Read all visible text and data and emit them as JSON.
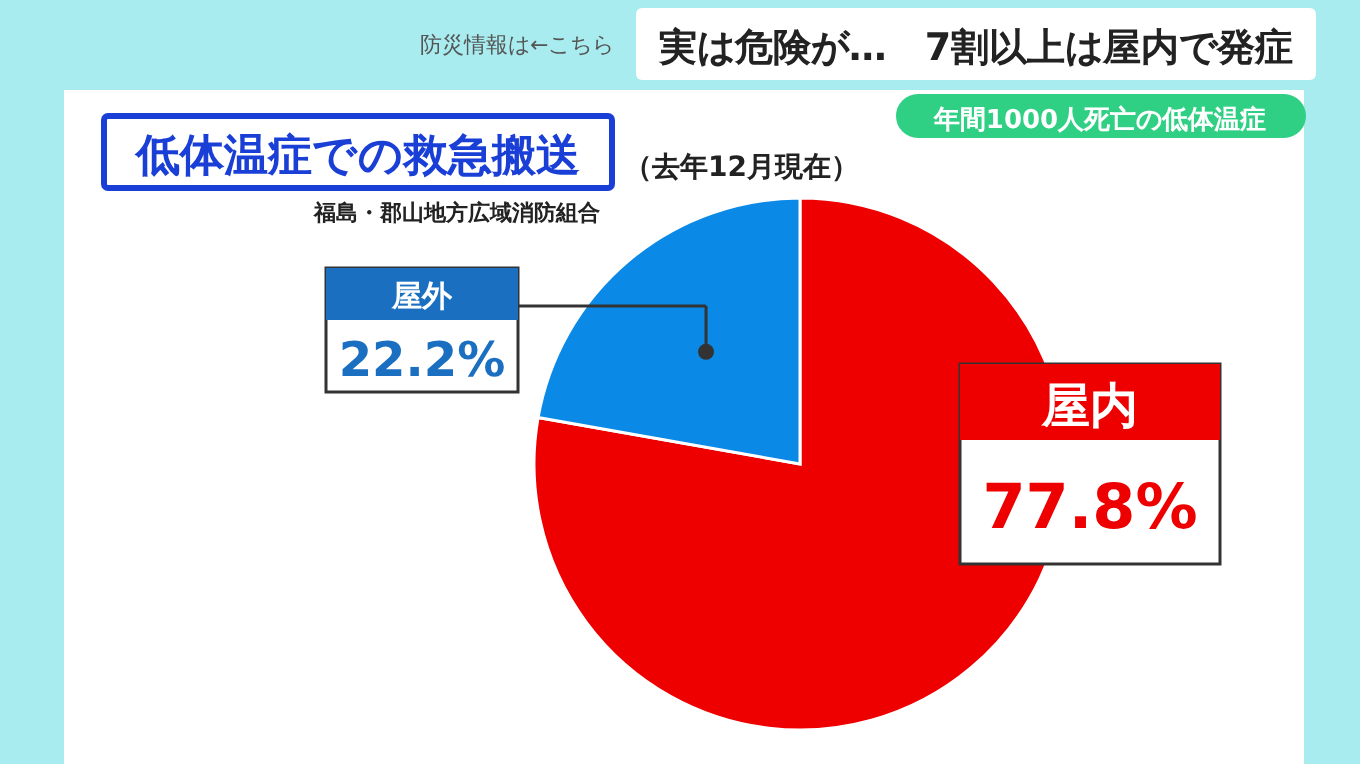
{
  "chart_data": {
    "type": "pie",
    "title": "低体温症での救急搬送",
    "subtitle": "（去年12月現在）",
    "categories": [
      "屋内",
      "屋外"
    ],
    "values": [
      77.8,
      22.2
    ],
    "colors": [
      "#ee0000",
      "#0a8ae6"
    ],
    "value_labels": [
      "77.8%",
      "22.2%"
    ],
    "annotations": [
      "福島・郡山地方広域消防組合",
      "実は危険が…　7割以上は屋内で発症",
      "年間1000人死亡の低体温症",
      "防災情報は←こちら"
    ]
  }
}
